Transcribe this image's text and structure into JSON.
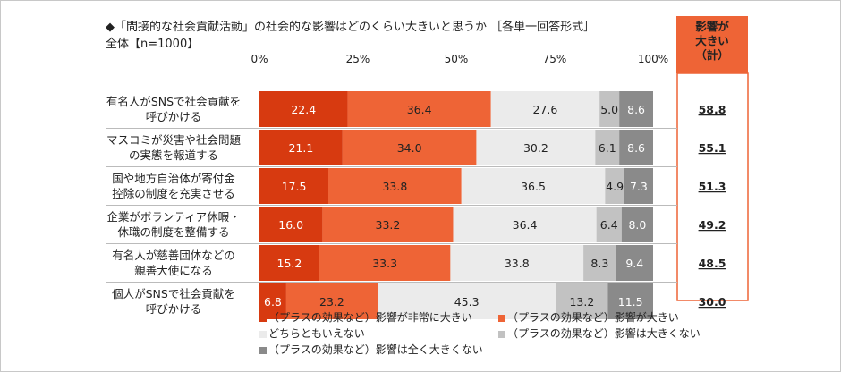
{
  "title": "◆「間接的な社会貢献活動」の社会的な影響はどのくらい大きいと思うか ［各単一回答形式］",
  "subtitle": "全体【n=1000】",
  "summary_header": "影響が\n大きい\n（計）",
  "colors": {
    "very_large": "#d73a10",
    "large": "#ee6436",
    "neutral": "#ebebeb",
    "not_large": "#c2c2c2",
    "none": "#8a8a8a",
    "summary_bg": "#ee6436",
    "summary_border": "#ee6436"
  },
  "chart_data": {
    "type": "bar",
    "orientation": "horizontal",
    "stacked": true,
    "xlim": [
      0,
      100
    ],
    "x_ticks": [
      "0%",
      "25%",
      "50%",
      "75%",
      "100%"
    ],
    "categories": [
      "有名人がSNSで社会貢献を\n呼びかける",
      "マスコミが災害や社会問題\nの実態を報道する",
      "国や地方自治体が寄付金\n控除の制度を充実させる",
      "企業がボランティア休暇・\n休職の制度を整備する",
      "有名人が慈善団体などの\n親善大使になる",
      "個人がSNSで社会貢献を\n呼びかける"
    ],
    "series": [
      {
        "name": "（プラスの効果など）影響が非常に大きい",
        "values": [
          22.4,
          21.1,
          17.5,
          16.0,
          15.2,
          6.8
        ]
      },
      {
        "name": "（プラスの効果など）影響が大きい",
        "values": [
          36.4,
          34.0,
          33.8,
          33.2,
          33.3,
          23.2
        ]
      },
      {
        "name": "どちらともいえない",
        "values": [
          27.6,
          30.2,
          36.5,
          36.4,
          33.8,
          45.3
        ]
      },
      {
        "name": "（プラスの効果など）影響は大きくない",
        "values": [
          5.0,
          6.1,
          4.9,
          6.4,
          8.3,
          13.2
        ]
      },
      {
        "name": "（プラスの効果など）影響は全く大きくない",
        "values": [
          8.6,
          8.6,
          7.3,
          8.0,
          9.4,
          11.5
        ]
      }
    ],
    "summary": [
      "58.8",
      "55.1",
      "51.3",
      "49.2",
      "48.5",
      "30.0"
    ],
    "legend_position": "bottom"
  }
}
